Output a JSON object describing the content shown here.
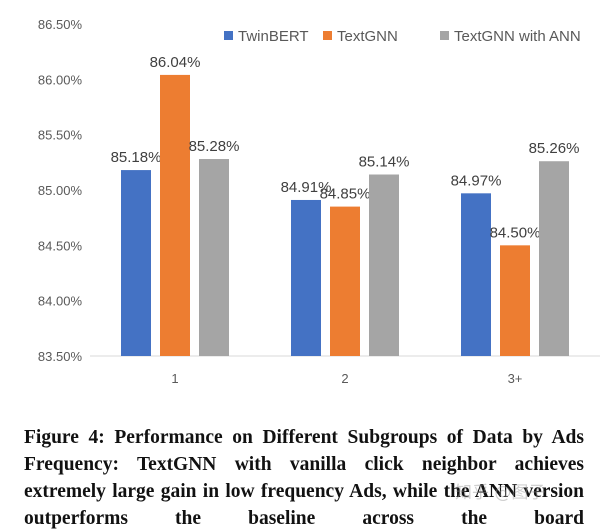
{
  "chart_data": {
    "type": "bar",
    "categories": [
      "1",
      "2",
      "3+"
    ],
    "series": [
      {
        "name": "TwinBERT",
        "values": [
          85.18,
          84.91,
          84.97
        ],
        "labels": [
          "85.18%",
          "84.91%",
          "84.97%"
        ],
        "color": "#4472C4"
      },
      {
        "name": "TextGNN",
        "values": [
          86.04,
          84.85,
          84.5
        ],
        "labels": [
          "86.04%",
          "84.85%",
          "84.50%"
        ],
        "color": "#ED7D31"
      },
      {
        "name": "TextGNN with ANN",
        "values": [
          85.28,
          85.14,
          85.26
        ],
        "labels": [
          "85.28%",
          "85.14%",
          "85.26%"
        ],
        "color": "#A5A5A5"
      }
    ],
    "yticks": [
      "83.50%",
      "84.00%",
      "84.50%",
      "85.00%",
      "85.50%",
      "86.00%",
      "86.50%"
    ],
    "ylim": [
      83.5,
      86.5
    ],
    "grid": false,
    "legend": "top-right",
    "xlabel": "",
    "ylabel": "",
    "title": ""
  },
  "caption": "Figure 4: Performance on Different Subgroups of Data by Ads Frequency: TextGNN with vanilla click neighbor achieves extremely large gain in low frequency Ads, while the ANN version outperforms the baseline across the board",
  "watermark": "知乎 @图子"
}
